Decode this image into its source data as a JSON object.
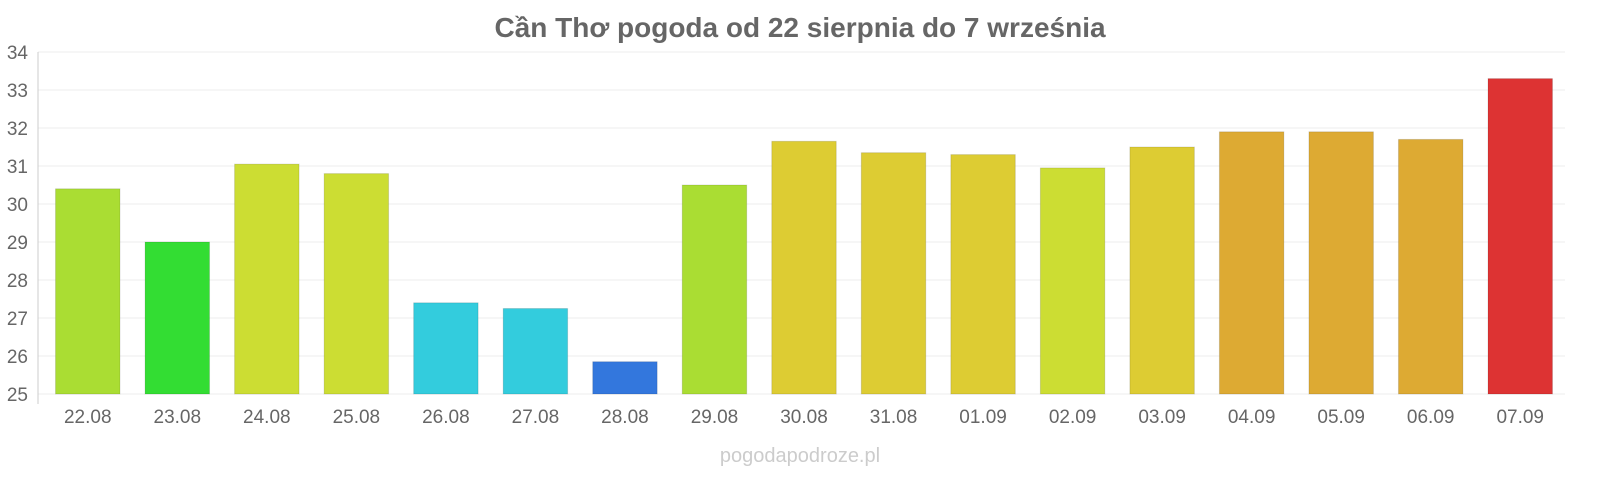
{
  "chart_data": {
    "type": "bar",
    "title": "Cần Thơ pogoda od 22 sierpnia do 7 września",
    "xlabel": "",
    "ylabel": "",
    "categories": [
      "22.08",
      "23.08",
      "24.08",
      "25.08",
      "26.08",
      "27.08",
      "28.08",
      "29.08",
      "30.08",
      "31.08",
      "01.09",
      "02.09",
      "03.09",
      "04.09",
      "05.09",
      "06.09",
      "07.09"
    ],
    "values": [
      30.4,
      29.0,
      31.05,
      30.8,
      27.4,
      27.25,
      25.85,
      30.5,
      31.65,
      31.35,
      31.3,
      30.95,
      31.5,
      31.9,
      31.9,
      31.7,
      33.3
    ],
    "colors": [
      "#aadd33",
      "#33dd33",
      "#ccdd33",
      "#ccdd33",
      "#33ccdd",
      "#33ccdd",
      "#3377dd",
      "#aadd33",
      "#ddcc33",
      "#ddcc33",
      "#ddcc33",
      "#ccdd33",
      "#ddcc33",
      "#ddaa33",
      "#ddaa33",
      "#ddaa33",
      "#dd3333"
    ],
    "ylim": [
      25,
      34
    ],
    "yticks": [
      "25",
      "26",
      "27",
      "28",
      "29",
      "30",
      "31",
      "32",
      "33",
      "34"
    ],
    "grid": true,
    "legend": "none"
  },
  "watermark": "pogodapodroze.pl"
}
